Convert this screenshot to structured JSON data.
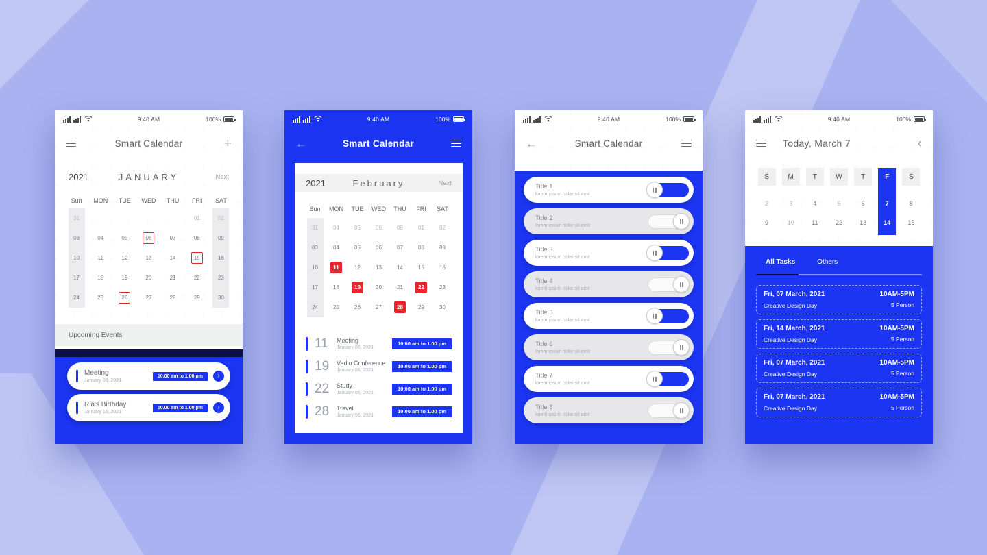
{
  "colors": {
    "primary": "#1b35f2",
    "navy": "#0a1044",
    "red": "#e8262d",
    "background": "#a9b3f1",
    "band": "#c6cdf9"
  },
  "status": {
    "time": "9:40 AM",
    "battery": "100%"
  },
  "icons": {
    "back": "←",
    "plus": "+",
    "forward": "›",
    "chevron_left": "‹"
  },
  "phone1": {
    "title": "Smart Calendar",
    "year": "2021",
    "month": "JANUARY",
    "next_label": "Next",
    "day_names": [
      "Sun",
      "MON",
      "TUE",
      "WED",
      "THU",
      "FRI",
      "SAT"
    ],
    "shaded_columns": [
      0,
      6
    ],
    "weeks": [
      [
        {
          "d": "31",
          "m": 1
        },
        {
          "d": ""
        },
        {
          "d": ""
        },
        {
          "d": ""
        },
        {
          "d": ""
        },
        {
          "d": "01",
          "m": 1
        },
        {
          "d": "02",
          "m": 1
        }
      ],
      [
        {
          "d": "03"
        },
        {
          "d": "04"
        },
        {
          "d": "05"
        },
        {
          "d": "06",
          "o": 1
        },
        {
          "d": "07"
        },
        {
          "d": "08"
        },
        {
          "d": "09"
        }
      ],
      [
        {
          "d": "10"
        },
        {
          "d": "11"
        },
        {
          "d": "12"
        },
        {
          "d": "13"
        },
        {
          "d": "14"
        },
        {
          "d": "15",
          "o": 1
        },
        {
          "d": "16"
        }
      ],
      [
        {
          "d": "17"
        },
        {
          "d": "18"
        },
        {
          "d": "19"
        },
        {
          "d": "20"
        },
        {
          "d": "21"
        },
        {
          "d": "22"
        },
        {
          "d": "23"
        }
      ],
      [
        {
          "d": "24"
        },
        {
          "d": "25"
        },
        {
          "d": "26",
          "o": 1
        },
        {
          "d": "27"
        },
        {
          "d": "28"
        },
        {
          "d": "29"
        },
        {
          "d": "30"
        }
      ]
    ],
    "upcoming_label": "Upcoming Events",
    "events": [
      {
        "title": "Meeting",
        "date": "January 06, 2021",
        "time": "10.00 am to 1.00 pm"
      },
      {
        "title": "Ria's Birthday",
        "date": "January 15, 2021",
        "time": "10.00 am to 1.00 pm"
      }
    ]
  },
  "phone2": {
    "title": "Smart Calendar",
    "year": "2021",
    "month": "February",
    "next_label": "Next",
    "day_names": [
      "Sun",
      "MON",
      "TUE",
      "WED",
      "THU",
      "FRI",
      "SAT"
    ],
    "shaded_columns": [
      0
    ],
    "weeks": [
      [
        {
          "d": "31",
          "m": 1
        },
        {
          "d": "04",
          "m": 1
        },
        {
          "d": "05",
          "m": 1
        },
        {
          "d": "06",
          "m": 1
        },
        {
          "d": "06",
          "m": 1
        },
        {
          "d": "01",
          "m": 1
        },
        {
          "d": "02",
          "m": 1
        }
      ],
      [
        {
          "d": "03"
        },
        {
          "d": "04"
        },
        {
          "d": "05"
        },
        {
          "d": "06"
        },
        {
          "d": "07"
        },
        {
          "d": "08"
        },
        {
          "d": "09"
        }
      ],
      [
        {
          "d": "10"
        },
        {
          "d": "11",
          "f": 1
        },
        {
          "d": "12"
        },
        {
          "d": "13"
        },
        {
          "d": "14"
        },
        {
          "d": "15"
        },
        {
          "d": "16"
        }
      ],
      [
        {
          "d": "17"
        },
        {
          "d": "18"
        },
        {
          "d": "19",
          "f": 1
        },
        {
          "d": "20"
        },
        {
          "d": "21"
        },
        {
          "d": "22",
          "f": 1
        },
        {
          "d": "23"
        }
      ],
      [
        {
          "d": "24"
        },
        {
          "d": "25"
        },
        {
          "d": "26"
        },
        {
          "d": "27"
        },
        {
          "d": "28",
          "f": 1
        },
        {
          "d": "29"
        },
        {
          "d": "30"
        }
      ]
    ],
    "events": [
      {
        "day": "11",
        "title": "Meeting",
        "date": "January 06, 2021",
        "time": "10.00 am to 1.00 pm"
      },
      {
        "day": "19",
        "title": "Vedio Conference",
        "date": "January 06, 2021",
        "time": "10.00 am to 1.00 pm"
      },
      {
        "day": "22",
        "title": "Study",
        "date": "January 06, 2021",
        "time": "10.00 am to 1.00 pm"
      },
      {
        "day": "28",
        "title": "Travel",
        "date": "January 06, 2021",
        "time": "10.00 am to 1.00 pm"
      }
    ]
  },
  "phone3": {
    "title": "Smart Calendar",
    "items": [
      {
        "title": "Title 1",
        "subtitle": "lorem ipsum dolar sit amit",
        "on": true
      },
      {
        "title": "Title 2",
        "subtitle": "lorem ipsum dolar sit amit",
        "on": false
      },
      {
        "title": "Title 3",
        "subtitle": "lorem ipsum dolar sit amit",
        "on": true
      },
      {
        "title": "Title 4",
        "subtitle": "lorem ipsum dolar sit amit",
        "on": false
      },
      {
        "title": "Title 5",
        "subtitle": "lorem ipsum dolar sit amit",
        "on": true
      },
      {
        "title": "Title 6",
        "subtitle": "lorem ipsum dolar sit amit",
        "on": false
      },
      {
        "title": "Title 7",
        "subtitle": "lorem ipsum dolar sit amit",
        "on": true
      },
      {
        "title": "Title 8",
        "subtitle": "lorem ipsum dolar sit amit",
        "on": false
      }
    ]
  },
  "phone4": {
    "title": "Today, March 7",
    "day_letters": [
      "S",
      "M",
      "T",
      "W",
      "T",
      "F",
      "S"
    ],
    "selected_index": 5,
    "week_rows": [
      [
        {
          "d": "2",
          "m": 1
        },
        {
          "d": "3",
          "m": 1
        },
        {
          "d": "4"
        },
        {
          "d": "5",
          "m": 1
        },
        {
          "d": "6"
        },
        {
          "d": "7"
        },
        {
          "d": "8"
        }
      ],
      [
        {
          "d": "9"
        },
        {
          "d": "10",
          "m": 1
        },
        {
          "d": "11"
        },
        {
          "d": "22"
        },
        {
          "d": "13"
        },
        {
          "d": "14"
        },
        {
          "d": "15"
        }
      ]
    ],
    "tabs": [
      {
        "label": "All Tasks",
        "active": true
      },
      {
        "label": "Others",
        "active": false
      }
    ],
    "tasks": [
      {
        "date": "Fri, 07 March, 2021",
        "name": "Creative Design Day",
        "time": "10AM-5PM",
        "people": "5 Person"
      },
      {
        "date": "Fri, 14 March,  2021",
        "name": "Creative Design Day",
        "time": "10AM-5PM",
        "people": "5 Person"
      },
      {
        "date": "Fri, 07 March,  2021",
        "name": "Creative Design Day",
        "time": "10AM-5PM",
        "people": "5 Person"
      },
      {
        "date": "Fri, 07 March, 2021",
        "name": "Creative Design Day",
        "time": "10AM-5PM",
        "people": "5 Person"
      }
    ]
  }
}
